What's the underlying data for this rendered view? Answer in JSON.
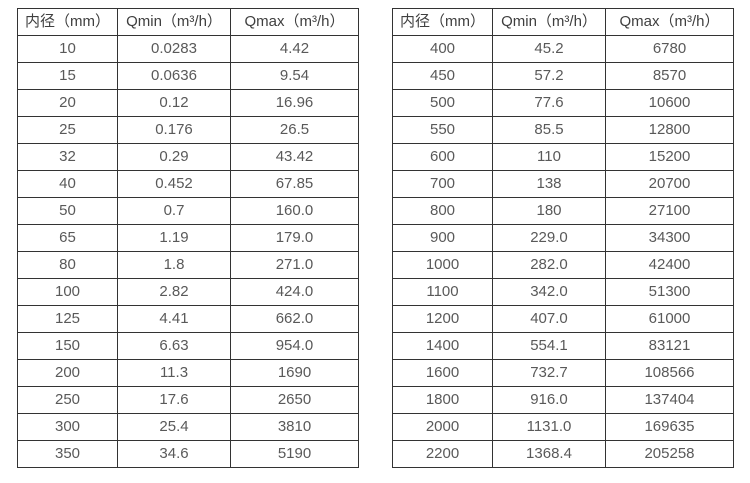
{
  "colors": {
    "background": "#ffffff",
    "border": "#333333",
    "header_text": "#3f3f3f",
    "body_text": "#595959"
  },
  "tables": [
    {
      "name": "flow-spec-table-small-diameters",
      "headers": [
        "内径（mm）",
        "Qmin（m³/h）",
        "Qmax（m³/h）"
      ],
      "rows": [
        [
          "10",
          "0.0283",
          "4.42"
        ],
        [
          "15",
          "0.0636",
          "9.54"
        ],
        [
          "20",
          "0.12",
          "16.96"
        ],
        [
          "25",
          "0.176",
          "26.5"
        ],
        [
          "32",
          "0.29",
          "43.42"
        ],
        [
          "40",
          "0.452",
          "67.85"
        ],
        [
          "50",
          "0.7",
          "160.0"
        ],
        [
          "65",
          "1.19",
          "179.0"
        ],
        [
          "80",
          "1.8",
          "271.0"
        ],
        [
          "100",
          "2.82",
          "424.0"
        ],
        [
          "125",
          "4.41",
          "662.0"
        ],
        [
          "150",
          "6.63",
          "954.0"
        ],
        [
          "200",
          "11.3",
          "1690"
        ],
        [
          "250",
          "17.6",
          "2650"
        ],
        [
          "300",
          "25.4",
          "3810"
        ],
        [
          "350",
          "34.6",
          "5190"
        ]
      ]
    },
    {
      "name": "flow-spec-table-large-diameters",
      "headers": [
        "内径（mm）",
        "Qmin（m³/h）",
        "Qmax（m³/h）"
      ],
      "rows": [
        [
          "400",
          "45.2",
          "6780"
        ],
        [
          "450",
          "57.2",
          "8570"
        ],
        [
          "500",
          "77.6",
          "10600"
        ],
        [
          "550",
          "85.5",
          "12800"
        ],
        [
          "600",
          "110",
          "15200"
        ],
        [
          "700",
          "138",
          "20700"
        ],
        [
          "800",
          "180",
          "27100"
        ],
        [
          "900",
          "229.0",
          "34300"
        ],
        [
          "1000",
          "282.0",
          "42400"
        ],
        [
          "1100",
          "342.0",
          "51300"
        ],
        [
          "1200",
          "407.0",
          "61000"
        ],
        [
          "1400",
          "554.1",
          "83121"
        ],
        [
          "1600",
          "732.7",
          "108566"
        ],
        [
          "1800",
          "916.0",
          "137404"
        ],
        [
          "2000",
          "1131.0",
          "169635"
        ],
        [
          "2200",
          "1368.4",
          "205258"
        ]
      ]
    }
  ]
}
